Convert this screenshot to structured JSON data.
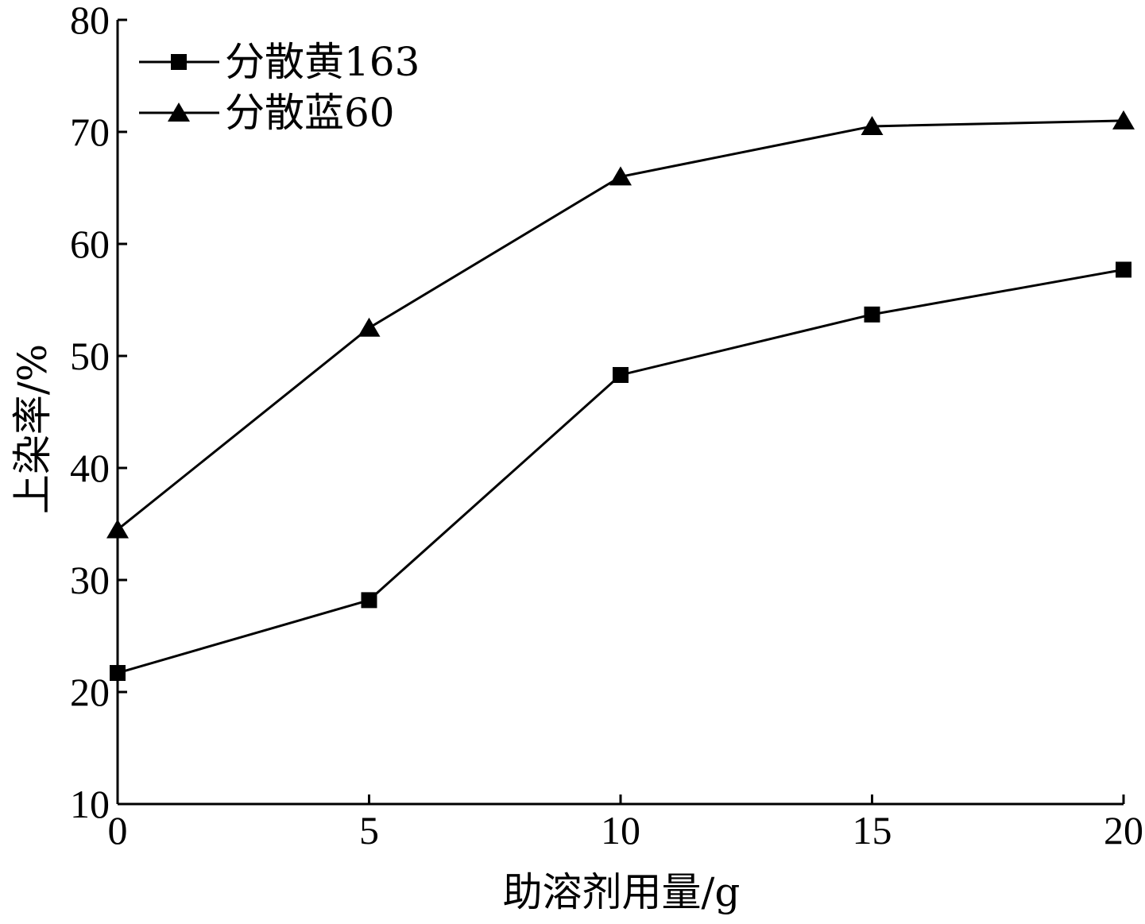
{
  "chart_data": {
    "type": "line",
    "title": "",
    "xlabel": "助溶剂用量/g",
    "ylabel": "上染率/%",
    "x": [
      0,
      5,
      10,
      15,
      20
    ],
    "xlim": [
      0,
      20
    ],
    "ylim": [
      10,
      80
    ],
    "x_ticks": [
      "0",
      "5",
      "10",
      "15",
      "20"
    ],
    "y_ticks": [
      "10",
      "20",
      "30",
      "40",
      "50",
      "60",
      "70",
      "80"
    ],
    "grid": false,
    "legend_position": "top-left",
    "series": [
      {
        "name": "分散黄163",
        "marker": "square",
        "color": "#000000",
        "values": [
          21.7,
          28.2,
          48.3,
          53.7,
          57.7
        ]
      },
      {
        "name": "分散蓝60",
        "marker": "triangle",
        "color": "#000000",
        "values": [
          34.5,
          52.5,
          66.0,
          70.5,
          71.0
        ]
      }
    ]
  }
}
